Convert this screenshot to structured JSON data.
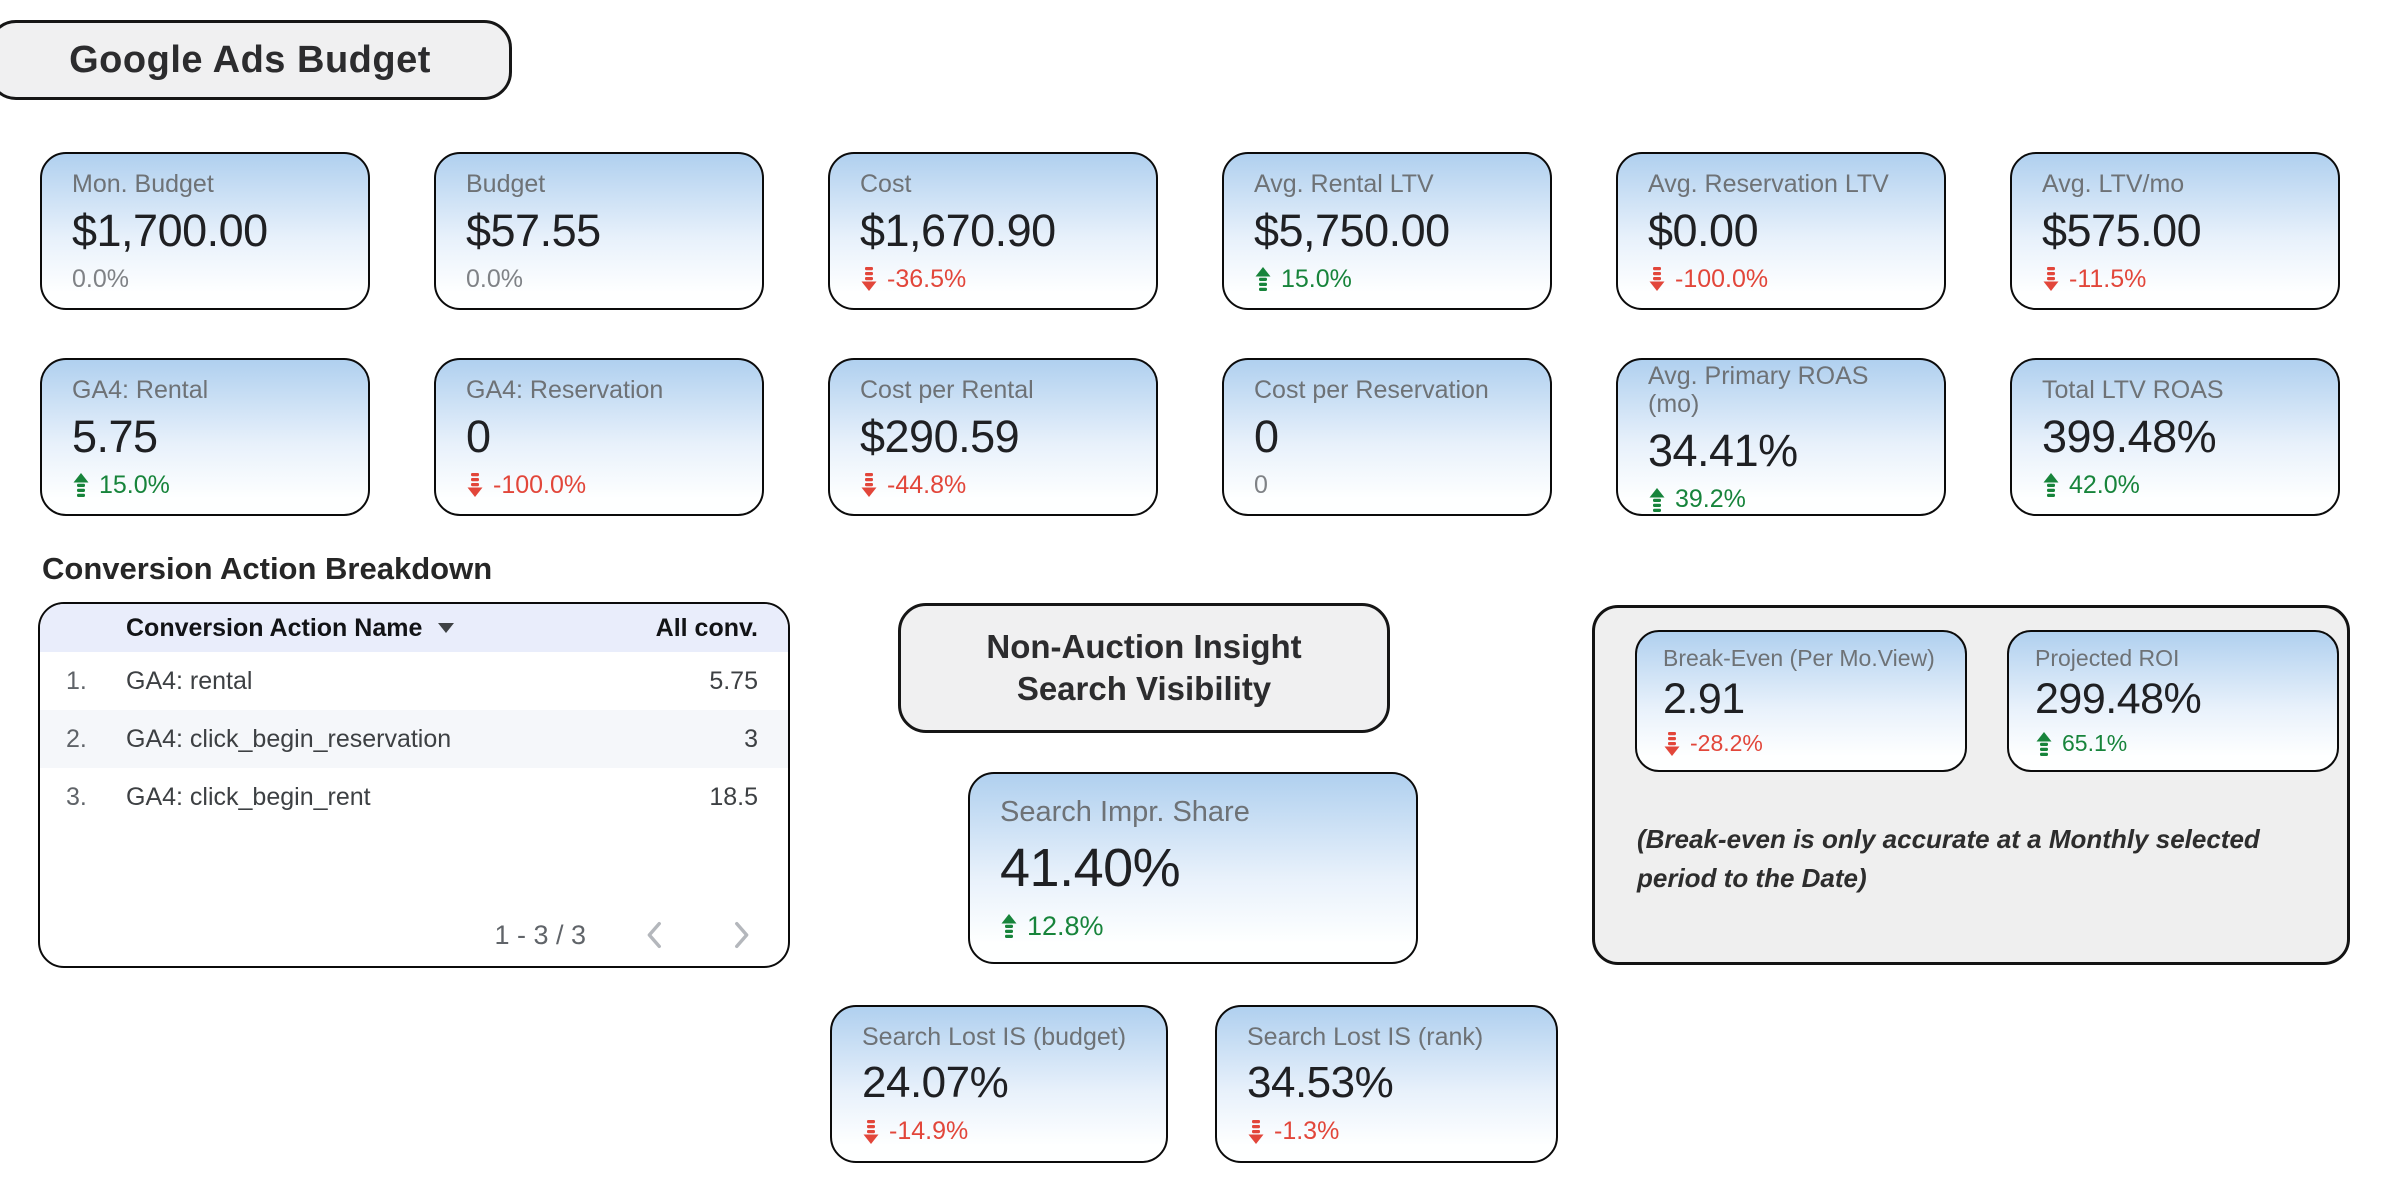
{
  "page": {
    "title": "Google Ads Budget"
  },
  "scorecards_row1": [
    {
      "label": "Mon. Budget",
      "value": "$1,700.00",
      "comparison": "0.0%",
      "trend": "none"
    },
    {
      "label": "Budget",
      "value": "$57.55",
      "comparison": "0.0%",
      "trend": "none"
    },
    {
      "label": "Cost",
      "value": "$1,670.90",
      "comparison": "-36.5%",
      "trend": "down"
    },
    {
      "label": "Avg. Rental LTV",
      "value": "$5,750.00",
      "comparison": "15.0%",
      "trend": "up"
    },
    {
      "label": "Avg. Reservation LTV",
      "value": "$0.00",
      "comparison": "-100.0%",
      "trend": "down"
    },
    {
      "label": "Avg. LTV/mo",
      "value": "$575.00",
      "comparison": "-11.5%",
      "trend": "down"
    }
  ],
  "scorecards_row2": [
    {
      "label": "GA4: Rental",
      "value": "5.75",
      "comparison": "15.0%",
      "trend": "up"
    },
    {
      "label": "GA4: Reservation",
      "value": "0",
      "comparison": "-100.0%",
      "trend": "down"
    },
    {
      "label": "Cost per Rental",
      "value": "$290.59",
      "comparison": "-44.8%",
      "trend": "down"
    },
    {
      "label": "Cost per Reservation",
      "value": "0",
      "comparison": "0",
      "trend": "none"
    },
    {
      "label": "Avg. Primary ROAS (mo)",
      "value": "34.41%",
      "comparison": "39.2%",
      "trend": "up"
    },
    {
      "label": "Total LTV ROAS",
      "value": "399.48%",
      "comparison": "42.0%",
      "trend": "up"
    }
  ],
  "conversion_table": {
    "title": "Conversion Action Breakdown",
    "columns": {
      "name": "Conversion Action Name",
      "value": "All conv."
    },
    "rows": [
      {
        "index": "1.",
        "name": "GA4: rental",
        "value": "5.75"
      },
      {
        "index": "2.",
        "name": "GA4: click_begin_reservation",
        "value": "3"
      },
      {
        "index": "3.",
        "name": "GA4: click_begin_rent",
        "value": "18.5"
      }
    ],
    "pagination": {
      "range": "1 - 3 / 3"
    }
  },
  "search_visibility": {
    "title": "Non-Auction Insight Search Visibility",
    "impression_share": {
      "label": "Search Impr. Share",
      "value": "41.40%",
      "comparison": "12.8%",
      "trend": "up"
    },
    "lost_budget": {
      "label": "Search Lost IS (budget)",
      "value": "24.07%",
      "comparison": "-14.9%",
      "trend": "down"
    },
    "lost_rank": {
      "label": "Search Lost IS (rank)",
      "value": "34.53%",
      "comparison": "-1.3%",
      "trend": "down"
    }
  },
  "break_even_panel": {
    "break_even": {
      "label": "Break-Even (Per Mo.View)",
      "value": "2.91",
      "comparison": "-28.2%",
      "trend": "down"
    },
    "projected_roi": {
      "label": "Projected ROI",
      "value": "299.48%",
      "comparison": "65.1%",
      "trend": "up"
    },
    "note": "(Break-even is only accurate at a Monthly selected period to the Date)"
  },
  "icons": {
    "trend_up": "arrow-up-dashed-tail",
    "trend_down": "arrow-down-dashed-tail",
    "sort_descending": "filled-down-caret",
    "previous_page": "chevron-left",
    "next_page": "chevron-right"
  },
  "colors": {
    "positive": "#17843b",
    "negative": "#e2463a",
    "neutral_comparison": "#7f8286",
    "card_gradient_top": "#b0d0ef",
    "table_header_bg": "#e9edfb",
    "banner_bg": "#f0f0f1",
    "border": "#0b0b0b"
  }
}
